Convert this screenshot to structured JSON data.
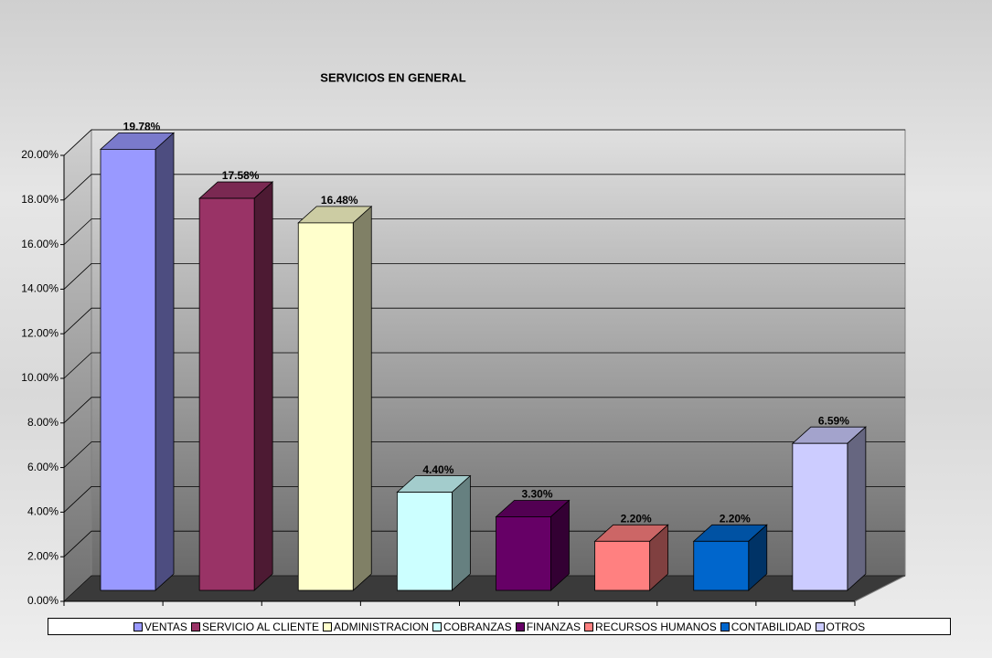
{
  "chart_data": {
    "type": "bar3d",
    "title": "SERVICIOS EN GENERAL",
    "categories": [
      "VENTAS",
      "SERVICIO AL CLIENTE",
      "ADMINISTRACION",
      "COBRANZAS",
      "FINANZAS",
      "RECURSOS HUMANOS",
      "CONTABILIDAD",
      "OTROS"
    ],
    "values": [
      19.78,
      17.58,
      16.48,
      4.4,
      3.3,
      2.2,
      2.2,
      6.59
    ],
    "value_labels": [
      "19.78%",
      "17.58%",
      "16.48%",
      "4.40%",
      "3.30%",
      "2.20%",
      "2.20%",
      "6.59%"
    ],
    "colors": [
      "#9999ff",
      "#993366",
      "#ffffcc",
      "#ccffff",
      "#660066",
      "#ff8080",
      "#0066cc",
      "#ccccff"
    ],
    "ylim": [
      0,
      20
    ],
    "yticks": [
      {
        "value": 0,
        "label": "0.00%"
      },
      {
        "value": 2,
        "label": "2.00%"
      },
      {
        "value": 4,
        "label": "4.00%"
      },
      {
        "value": 6,
        "label": "6.00%"
      },
      {
        "value": 8,
        "label": "8.00%"
      },
      {
        "value": 10,
        "label": "10.00%"
      },
      {
        "value": 12,
        "label": "12.00%"
      },
      {
        "value": 14,
        "label": "14.00%"
      },
      {
        "value": 16,
        "label": "16.00%"
      },
      {
        "value": 18,
        "label": "18.00%"
      },
      {
        "value": 20,
        "label": "20.00%"
      }
    ],
    "grid": true,
    "legend": "bottom"
  }
}
